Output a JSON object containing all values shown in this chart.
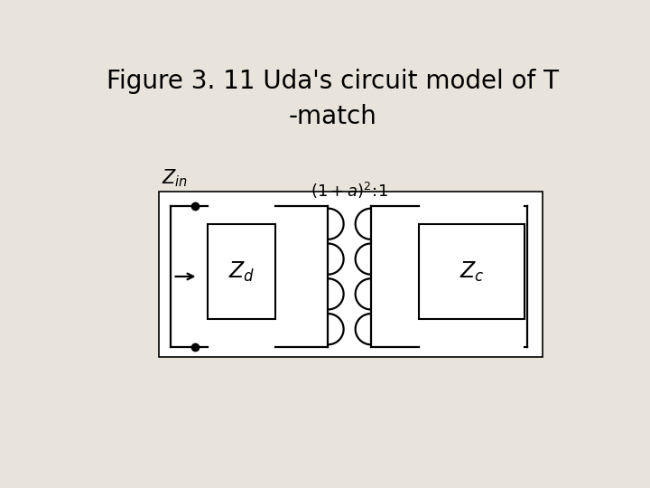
{
  "title_line1": "Figure 3. 11 Uda's circuit model of T",
  "title_line2": "-match",
  "bg_color": "#e8e4dc",
  "diagram_bg": "#ffffff",
  "line_color": "#000000",
  "title_fontsize": 20,
  "label_fontsize": 16
}
